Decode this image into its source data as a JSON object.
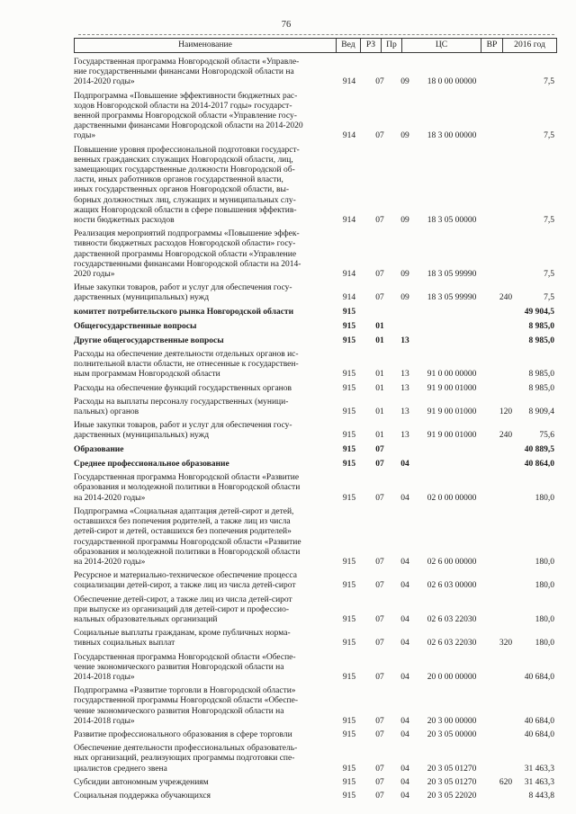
{
  "page": {
    "number": "76"
  },
  "table": {
    "columns": {
      "name": "Наименование",
      "ved": "Вед",
      "rz": "РЗ",
      "pr": "Пр",
      "cs": "ЦС",
      "vr": "ВР",
      "year": "2016 год"
    },
    "rows": [
      {
        "name": "Государственная программа Новгородской области «Управле-\nние государственными финансами Новгородской области на\n2014-2020 годы»",
        "ved": "914",
        "rz": "07",
        "pr": "09",
        "cs": "18 0 00 00000",
        "vr": "",
        "amount": "7,5",
        "bold": false
      },
      {
        "name": "Подпрограмма «Повышение эффективности бюджетных рас-\nходов Новгородской области на 2014-2017 годы» государст-\nвенной программы Новгородской области «Управление госу-\nдарственными финансами Новгородской области на 2014-2020\nгоды»",
        "ved": "914",
        "rz": "07",
        "pr": "09",
        "cs": "18 3 00 00000",
        "vr": "",
        "amount": "7,5",
        "bold": false
      },
      {
        "name": "Повышение уровня профессиональной подготовки государст-\nвенных гражданских служащих Новгородской области, лиц,\nзамещающих государственные должности Новгородской об-\nласти, иных работников органов государственной власти,\nиных государственных органов Новгородской области, вы-\nборных должностных лиц, служащих и муниципальных слу-\nжащих Новгородской области в сфере повышения эффектив-\nности бюджетных расходов",
        "ved": "914",
        "rz": "07",
        "pr": "09",
        "cs": "18 3 05 00000",
        "vr": "",
        "amount": "7,5",
        "bold": false
      },
      {
        "name": "Реализация мероприятий подпрограммы «Повышение эффек-\nтивности бюджетных расходов Новгородской области» госу-\nдарственной программы Новгородской области «Управление\nгосударственными финансами Новгородской области на 2014-\n2020 годы»",
        "ved": "914",
        "rz": "07",
        "pr": "09",
        "cs": "18 3 05 99990",
        "vr": "",
        "amount": "7,5",
        "bold": false
      },
      {
        "name": "Иные закупки товаров, работ и услуг для обеспечения госу-\nдарственных (муниципальных) нужд",
        "ved": "914",
        "rz": "07",
        "pr": "09",
        "cs": "18 3 05 99990",
        "vr": "240",
        "amount": "7,5",
        "bold": false
      },
      {
        "name": "комитет потребительского рынка Новгородской области",
        "ved": "915",
        "rz": "",
        "pr": "",
        "cs": "",
        "vr": "",
        "amount": "49 904,5",
        "bold": true
      },
      {
        "name": "Общегосударственные вопросы",
        "ved": "915",
        "rz": "01",
        "pr": "",
        "cs": "",
        "vr": "",
        "amount": "8 985,0",
        "bold": true
      },
      {
        "name": "Другие общегосударственные вопросы",
        "ved": "915",
        "rz": "01",
        "pr": "13",
        "cs": "",
        "vr": "",
        "amount": "8 985,0",
        "bold": true
      },
      {
        "name": "Расходы на обеспечение деятельности отдельных органов ис-\nполнительной власти области, не отнесенные к государствен-\nным программам Новгородской области",
        "ved": "915",
        "rz": "01",
        "pr": "13",
        "cs": "91 0 00 00000",
        "vr": "",
        "amount": "8 985,0",
        "bold": false
      },
      {
        "name": "Расходы на обеспечение функций государственных органов",
        "ved": "915",
        "rz": "01",
        "pr": "13",
        "cs": "91 9 00 01000",
        "vr": "",
        "amount": "8 985,0",
        "bold": false
      },
      {
        "name": "Расходы на выплаты персоналу государственных (муници-\nпальных) органов",
        "ved": "915",
        "rz": "01",
        "pr": "13",
        "cs": "91 9 00 01000",
        "vr": "120",
        "amount": "8 909,4",
        "bold": false
      },
      {
        "name": "Иные закупки товаров, работ и услуг для обеспечения госу-\nдарственных (муниципальных) нужд",
        "ved": "915",
        "rz": "01",
        "pr": "13",
        "cs": "91 9 00 01000",
        "vr": "240",
        "amount": "75,6",
        "bold": false
      },
      {
        "name": "Образование",
        "ved": "915",
        "rz": "07",
        "pr": "",
        "cs": "",
        "vr": "",
        "amount": "40 889,5",
        "bold": true
      },
      {
        "name": "Среднее профессиональное образование",
        "ved": "915",
        "rz": "07",
        "pr": "04",
        "cs": "",
        "vr": "",
        "amount": "40 864,0",
        "bold": true
      },
      {
        "name": "Государственная программа Новгородской области «Развитие\nобразования и молодежной политики в Новгородской области\nна 2014-2020 годы»",
        "ved": "915",
        "rz": "07",
        "pr": "04",
        "cs": "02 0 00 00000",
        "vr": "",
        "amount": "180,0",
        "bold": false
      },
      {
        "name": "Подпрограмма «Социальная адаптация детей-сирот и детей,\nоставшихся без попечения родителей, а также лиц из числа\nдетей-сирот и детей, оставшихся без попечения родителей»\nгосударственной программы Новгородской области «Развитие\nобразования и молодежной политики в Новгородской области\nна 2014-2020 годы»",
        "ved": "915",
        "rz": "07",
        "pr": "04",
        "cs": "02 6 00 00000",
        "vr": "",
        "amount": "180,0",
        "bold": false
      },
      {
        "name": "Ресурсное и материально-техническое обеспечение процесса\nсоциализации детей-сирот, а также лиц из числа детей-сирот",
        "ved": "915",
        "rz": "07",
        "pr": "04",
        "cs": "02 6 03 00000",
        "vr": "",
        "amount": "180,0",
        "bold": false
      },
      {
        "name": "Обеспечение детей-сирот, а также лиц из числа детей-сирот\nпри выпуске из организаций для детей-сирот и профессио-\nнальных образовательных организаций",
        "ved": "915",
        "rz": "07",
        "pr": "04",
        "cs": "02 6 03 22030",
        "vr": "",
        "amount": "180,0",
        "bold": false
      },
      {
        "name": "Социальные выплаты гражданам, кроме публичных норма-\nтивных социальных выплат",
        "ved": "915",
        "rz": "07",
        "pr": "04",
        "cs": "02 6 03 22030",
        "vr": "320",
        "amount": "180,0",
        "bold": false
      },
      {
        "name": "Государственная программа Новгородской области «Обеспе-\nчение экономического развития Новгородской области на\n2014-2018 годы»",
        "ved": "915",
        "rz": "07",
        "pr": "04",
        "cs": "20 0 00 00000",
        "vr": "",
        "amount": "40 684,0",
        "bold": false
      },
      {
        "name": "Подпрограмма «Развитие торговли в Новгородской области»\nгосударственной программы Новгородской области «Обеспе-\nчение экономического развития Новгородской области на\n2014-2018 годы»",
        "ved": "915",
        "rz": "07",
        "pr": "04",
        "cs": "20 3 00 00000",
        "vr": "",
        "amount": "40 684,0",
        "bold": false
      },
      {
        "name": "Развитие профессионального образования в сфере торговли",
        "ved": "915",
        "rz": "07",
        "pr": "04",
        "cs": "20 3 05 00000",
        "vr": "",
        "amount": "40 684,0",
        "bold": false
      },
      {
        "name": "Обеспечение деятельности профессиональных образователь-\nных организаций, реализующих программы подготовки спе-\nциалистов среднего звена",
        "ved": "915",
        "rz": "07",
        "pr": "04",
        "cs": "20 3 05 01270",
        "vr": "",
        "amount": "31 463,3",
        "bold": false
      },
      {
        "name": "Субсидии автономным учреждениям",
        "ved": "915",
        "rz": "07",
        "pr": "04",
        "cs": "20 3 05 01270",
        "vr": "620",
        "amount": "31 463,3",
        "bold": false
      },
      {
        "name": "Социальная поддержка обучающихся",
        "ved": "915",
        "rz": "07",
        "pr": "04",
        "cs": "20 3 05 22020",
        "vr": "",
        "amount": "8 443,8",
        "bold": false
      }
    ]
  }
}
